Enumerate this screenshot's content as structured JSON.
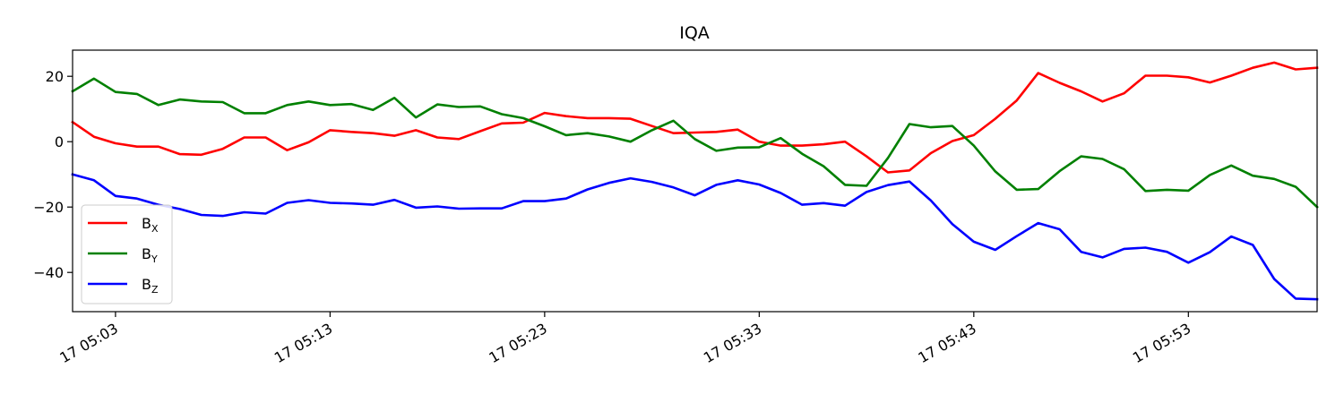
{
  "chart_data": {
    "type": "line",
    "title": "IQA",
    "xlabel": "",
    "ylabel": "",
    "x_range_minutes": [
      1.0,
      59.0
    ],
    "ylim": [
      -52,
      28
    ],
    "y_ticks": [
      20,
      0,
      -20,
      -40
    ],
    "x_ticks": [
      {
        "m": 3,
        "label": "17 05:03"
      },
      {
        "m": 13,
        "label": "17 05:13"
      },
      {
        "m": 23,
        "label": "17 05:23"
      },
      {
        "m": 33,
        "label": "17 05:33"
      },
      {
        "m": 43,
        "label": "17 05:43"
      },
      {
        "m": 53,
        "label": "17 05:53"
      }
    ],
    "legend_position": "lower-left",
    "grid": false,
    "x": [
      1,
      2,
      3,
      4,
      5,
      6,
      7,
      8,
      9,
      10,
      11,
      12,
      13,
      14,
      15,
      16,
      17,
      18,
      19,
      20,
      21,
      22,
      23,
      24,
      25,
      26,
      27,
      28,
      29,
      30,
      31,
      32,
      33,
      34,
      35,
      36,
      37,
      38,
      39,
      40,
      41,
      42,
      43,
      44,
      45,
      46,
      47,
      48,
      49,
      50,
      51,
      52,
      53,
      54,
      55,
      56,
      57,
      58,
      59
    ],
    "series": [
      {
        "name": "B",
        "sub": "X",
        "color": "#ff0000",
        "values": [
          6,
          1.5,
          -0.5,
          -1.5,
          -1.5,
          -3.8,
          -4,
          -2.2,
          1.3,
          1.3,
          -2.6,
          -0.2,
          3.5,
          3,
          2.6,
          1.8,
          3.5,
          1.3,
          0.8,
          3.2,
          5.6,
          5.8,
          8.8,
          7.8,
          7.2,
          7.2,
          7,
          4.8,
          2.6,
          2.8,
          3,
          3.7,
          0,
          -1.2,
          -1.2,
          -0.8,
          0,
          -4.5,
          -9.4,
          -8.8,
          -3.5,
          0.2,
          2,
          7,
          12.6,
          21,
          18,
          15.4,
          12.3,
          14.8,
          20.2,
          20.2,
          19.7,
          18.1,
          20.2,
          22.6,
          24.2,
          22.1,
          22.6
        ]
      },
      {
        "name": "B",
        "sub": "Y",
        "color": "#008000",
        "values": [
          15.4,
          19.3,
          15.2,
          14.6,
          11.2,
          12.9,
          12.3,
          12.1,
          8.7,
          8.7,
          11.2,
          12.3,
          11.2,
          11.5,
          9.7,
          13.4,
          7.4,
          11.4,
          10.6,
          10.8,
          8.4,
          7.2,
          4.7,
          2,
          2.6,
          1.6,
          0,
          3.5,
          6.4,
          0.8,
          -2.8,
          -1.8,
          -1.7,
          1.1,
          -3.7,
          -7.5,
          -13.2,
          -13.5,
          -5,
          5.4,
          4.4,
          4.8,
          -1.2,
          -9.1,
          -14.7,
          -14.5,
          -9,
          -4.5,
          -5.3,
          -8.4,
          -15.1,
          -14.7,
          -15,
          -10.2,
          -7.3,
          -10.4,
          -11.4,
          -13.8,
          -20
        ]
      },
      {
        "name": "B",
        "sub": "Z",
        "color": "#0000ff",
        "values": [
          -10,
          -11.8,
          -16.6,
          -17.4,
          -19.3,
          -20.6,
          -22.4,
          -22.7,
          -21.6,
          -22,
          -18.7,
          -17.9,
          -18.7,
          -18.9,
          -19.3,
          -17.8,
          -20.2,
          -19.8,
          -20.5,
          -20.4,
          -20.4,
          -18.2,
          -18.2,
          -17.4,
          -14.6,
          -12.6,
          -11.2,
          -12.3,
          -14,
          -16.4,
          -13.2,
          -11.8,
          -13.1,
          -15.7,
          -19.3,
          -18.8,
          -19.6,
          -15.4,
          -13.3,
          -12.2,
          -18,
          -25.2,
          -30.6,
          -33.1,
          -28.9,
          -24.9,
          -26.8,
          -33.7,
          -35.4,
          -32.8,
          -32.4,
          -33.7,
          -37,
          -33.8,
          -29,
          -31.6,
          -42,
          -48,
          -48.2
        ]
      }
    ]
  }
}
